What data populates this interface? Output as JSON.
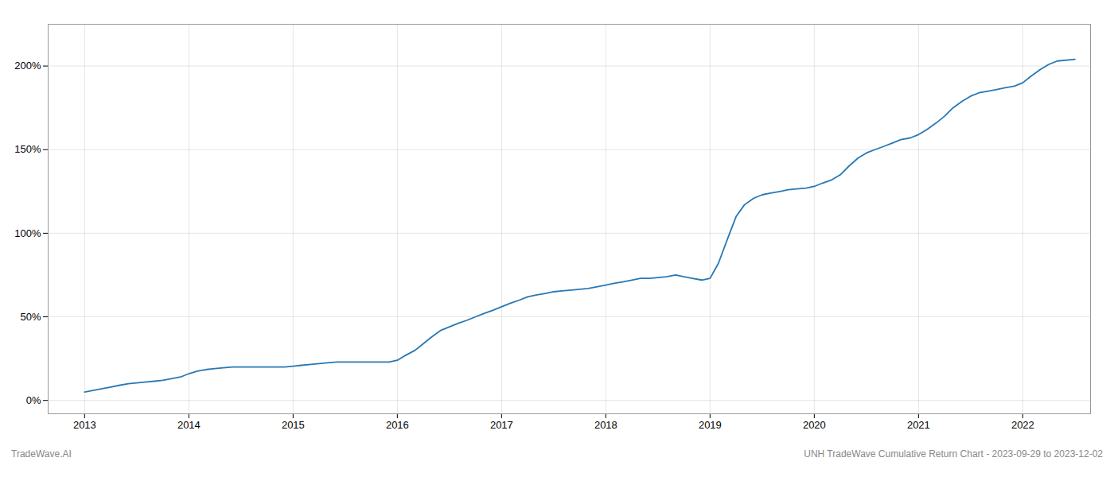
{
  "chart_data": {
    "type": "line",
    "title": "UNH TradeWave Cumulative Return Chart - 2023-09-29 to 2023-12-02",
    "annotations": [
      "TradeWave.AI"
    ],
    "color": "#2878b5",
    "grid": true,
    "x": [
      2013.0,
      2013.08,
      2013.17,
      2013.25,
      2013.33,
      2013.42,
      2013.5,
      2013.58,
      2013.67,
      2013.75,
      2013.83,
      2013.92,
      2014.0,
      2014.08,
      2014.17,
      2014.25,
      2014.33,
      2014.42,
      2014.5,
      2014.58,
      2014.67,
      2014.75,
      2014.83,
      2014.92,
      2015.0,
      2015.08,
      2015.17,
      2015.25,
      2015.33,
      2015.42,
      2015.5,
      2015.58,
      2015.67,
      2015.75,
      2015.83,
      2015.92,
      2016.0,
      2016.08,
      2016.17,
      2016.25,
      2016.33,
      2016.42,
      2016.5,
      2016.58,
      2016.67,
      2016.75,
      2016.83,
      2016.92,
      2017.0,
      2017.08,
      2017.17,
      2017.25,
      2017.33,
      2017.42,
      2017.5,
      2017.58,
      2017.67,
      2017.75,
      2017.83,
      2017.92,
      2018.0,
      2018.08,
      2018.17,
      2018.25,
      2018.33,
      2018.42,
      2018.5,
      2018.58,
      2018.67,
      2018.75,
      2018.83,
      2018.92,
      2019.0,
      2019.08,
      2019.17,
      2019.25,
      2019.33,
      2019.42,
      2019.5,
      2019.58,
      2019.67,
      2019.75,
      2019.83,
      2019.92,
      2020.0,
      2020.08,
      2020.17,
      2020.25,
      2020.33,
      2020.42,
      2020.5,
      2020.58,
      2020.67,
      2020.75,
      2020.83,
      2020.92,
      2021.0,
      2021.08,
      2021.17,
      2021.25,
      2021.33,
      2021.42,
      2021.5,
      2021.58,
      2021.67,
      2021.75,
      2021.83,
      2021.92,
      2022.0,
      2022.08,
      2022.17,
      2022.25,
      2022.33,
      2022.5
    ],
    "values": [
      5,
      6,
      7,
      8,
      9,
      10,
      10.5,
      11,
      11.5,
      12,
      13,
      14,
      16,
      17.5,
      18.5,
      19,
      19.5,
      20,
      20,
      20,
      20,
      20,
      20,
      20,
      20.5,
      21,
      21.5,
      22,
      22.5,
      23,
      23,
      23,
      23,
      23,
      23,
      23,
      24,
      27,
      30,
      34,
      38,
      42,
      44,
      46,
      48,
      50,
      52,
      54,
      56,
      58,
      60,
      62,
      63,
      64,
      65,
      65.5,
      66,
      66.5,
      67,
      68,
      69,
      70,
      71,
      72,
      73,
      73,
      73.5,
      74,
      75,
      74,
      73,
      72,
      73,
      82,
      97,
      110,
      117,
      121,
      123,
      124,
      125,
      126,
      126.5,
      127,
      128,
      130,
      132,
      135,
      140,
      145,
      148,
      150,
      152,
      154,
      156,
      157,
      159,
      162,
      166,
      170,
      175,
      179,
      182,
      184,
      185,
      186,
      187,
      188,
      190,
      194,
      198,
      201,
      203,
      204
    ],
    "xlim": [
      2012.65,
      2022.65
    ],
    "xticks": [
      2013,
      2014,
      2015,
      2016,
      2017,
      2018,
      2019,
      2020,
      2021,
      2022
    ],
    "ylim": [
      -8,
      225
    ],
    "yticks": [
      {
        "value": 0,
        "label": "0%"
      },
      {
        "value": 50,
        "label": "50%"
      },
      {
        "value": 100,
        "label": "100%"
      },
      {
        "value": 150,
        "label": "150%"
      },
      {
        "value": 200,
        "label": "200%"
      }
    ]
  }
}
